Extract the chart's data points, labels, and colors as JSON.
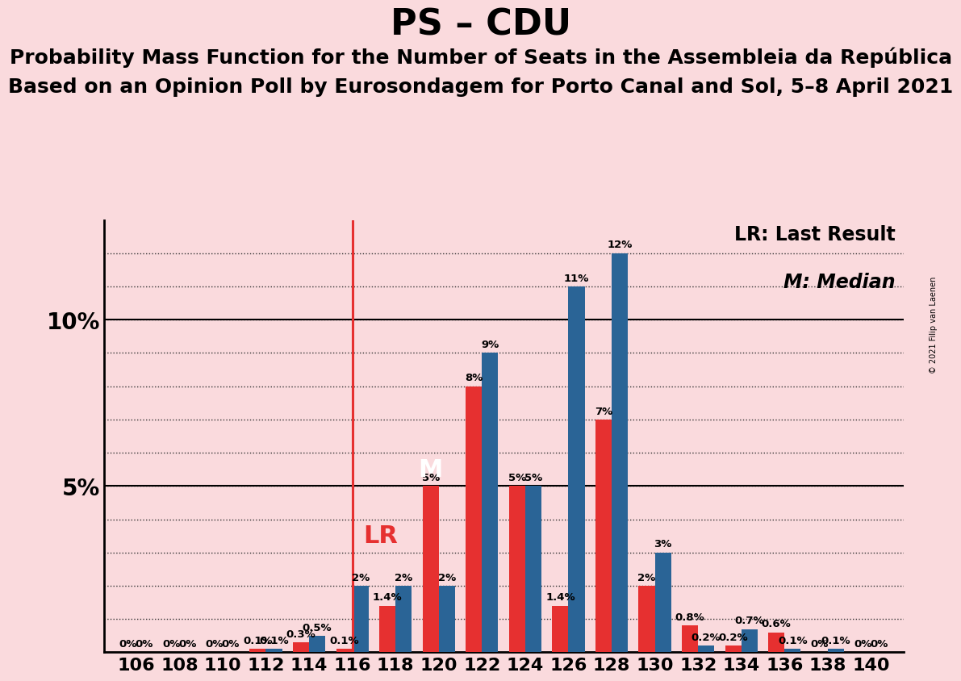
{
  "title": "PS – CDU",
  "subtitle1": "Probability Mass Function for the Number of Seats in the Assembleia da República",
  "subtitle2": "Based on an Opinion Poll by Eurosondagem for Porto Canal and Sol, 5–8 April 2021",
  "copyright": "© 2021 Filip van Laenen",
  "background_color": "#fadadd",
  "bar_color_red": "#e63030",
  "bar_color_blue": "#2a6496",
  "seats": [
    106,
    108,
    110,
    112,
    114,
    116,
    118,
    120,
    122,
    124,
    126,
    128,
    130,
    132,
    134,
    136,
    138,
    140
  ],
  "ps_values": [
    0.0,
    0.0,
    0.0,
    0.1,
    0.3,
    0.1,
    1.4,
    5.0,
    8.0,
    5.0,
    1.4,
    7.0,
    2.0,
    0.8,
    0.2,
    0.6,
    0.0,
    0.0
  ],
  "cdu_values": [
    0.0,
    0.0,
    0.0,
    0.1,
    0.5,
    2.0,
    2.0,
    2.0,
    9.0,
    5.0,
    11.0,
    12.0,
    3.0,
    0.2,
    0.7,
    0.1,
    0.1,
    0.0
  ],
  "ps_labels": [
    "0%",
    "0%",
    "0%",
    "0.1%",
    "0.3%",
    "0.1%",
    "1.4%",
    "5%",
    "8%",
    "5%",
    "1.4%",
    "7%",
    "2%",
    "0.8%",
    "0.2%",
    "0.6%",
    "0%",
    "0%"
  ],
  "cdu_labels": [
    "0%",
    "0%",
    "0%",
    "0.1%",
    "0.5%",
    "2%",
    "2%",
    "2%",
    "9%",
    "5%",
    "11%",
    "12%",
    "3%",
    "0.2%",
    "0.7%",
    "0.1%",
    "0.1%",
    "0%"
  ],
  "lr_seat": 116,
  "median_seat": 120,
  "lr_label": "LR",
  "median_label": "M",
  "legend_lr": "LR: Last Result",
  "legend_m": "M: Median",
  "ylim_max": 13.0,
  "title_fontsize": 32,
  "subtitle_fontsize": 18,
  "legend_fontsize": 17,
  "label_fontsize": 9.5,
  "ytick_fontsize": 20,
  "xtick_fontsize": 16
}
